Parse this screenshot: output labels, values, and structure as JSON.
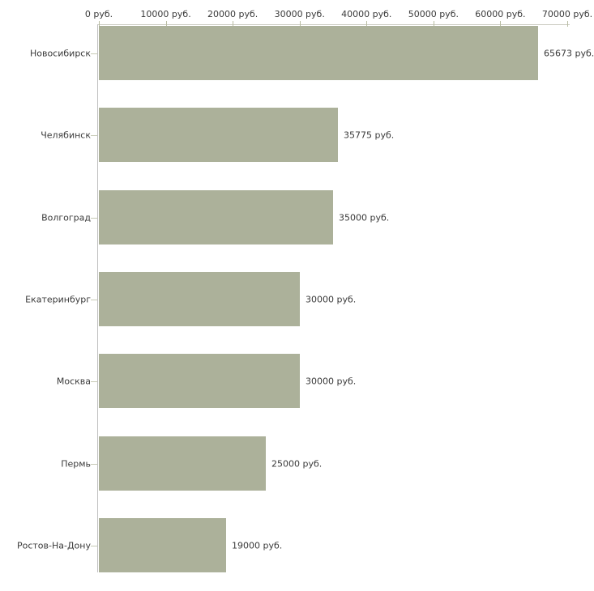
{
  "chart": {
    "background_color": "#ffffff",
    "bar_color": "#acb19a",
    "x_axis_line_color": "#c9c9bf",
    "y_axis_line_color": "#c0c0c0",
    "tick_mark_color": "#b9bda3",
    "text_color": "#3a3a3a"
  },
  "chart_data": {
    "type": "bar",
    "orientation": "horizontal",
    "title": "",
    "xlabel": "",
    "ylabel": "",
    "grid": false,
    "legend": false,
    "categories": [
      "Новосибирск",
      "Челябинск",
      "Волгоград",
      "Екатеринбург",
      "Москва",
      "Пермь",
      "Ростов-На-Дону"
    ],
    "values": [
      65673,
      35775,
      35000,
      30000,
      30000,
      25000,
      19000
    ],
    "value_labels": [
      "65673 руб.",
      "35775 руб.",
      "35000 руб.",
      "30000 руб.",
      "30000 руб.",
      "25000 руб.",
      "19000 руб."
    ],
    "x_axis": {
      "position": "top",
      "min": 0,
      "max": 70000,
      "tick_interval": 10000,
      "tick_labels": [
        "0 руб.",
        "10000 руб.",
        "20000 руб.",
        "30000 руб.",
        "40000 руб.",
        "50000 руб.",
        "60000 руб.",
        "70000 руб."
      ]
    }
  }
}
